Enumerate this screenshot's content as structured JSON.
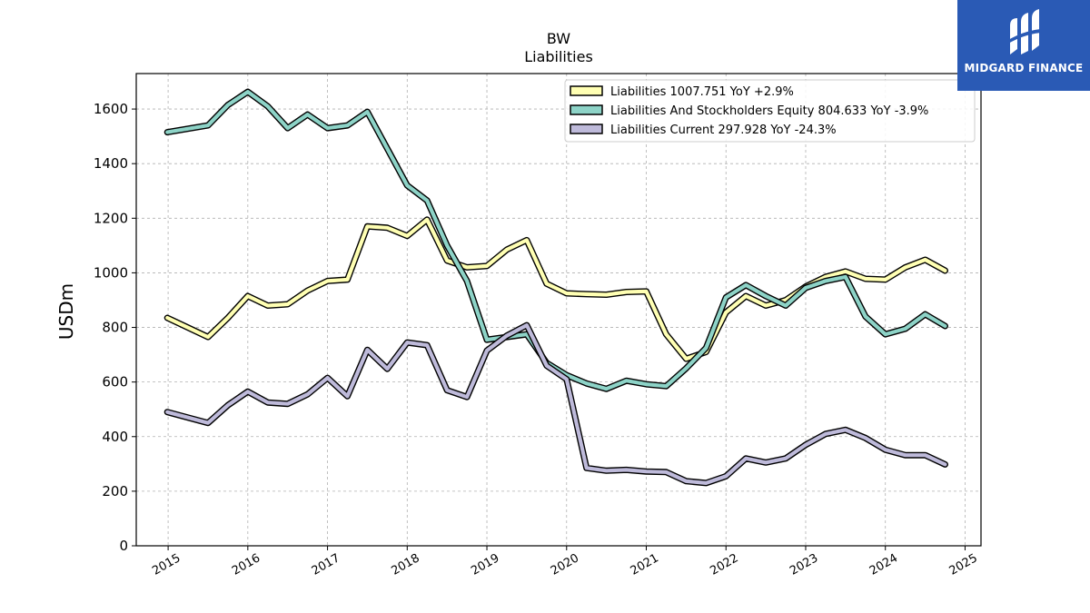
{
  "chart_data": {
    "type": "line",
    "title": "BW",
    "subtitle": "Liabilities",
    "xlabel": "",
    "ylabel": "USDm",
    "xlim": [
      2014.6,
      2025.2
    ],
    "ylim": [
      0,
      1730
    ],
    "xticks": [
      2015,
      2016,
      2017,
      2018,
      2019,
      2020,
      2021,
      2022,
      2023,
      2024,
      2025
    ],
    "xtick_labels": [
      "2015",
      "2016",
      "2017",
      "2018",
      "2019",
      "2020",
      "2021",
      "2022",
      "2023",
      "2024",
      "2025"
    ],
    "yticks": [
      0,
      200,
      400,
      600,
      800,
      1000,
      1200,
      1400,
      1600
    ],
    "ytick_labels": [
      "0",
      "200",
      "400",
      "600",
      "800",
      "1000",
      "1200",
      "1400",
      "1600"
    ],
    "grid": true,
    "legend_position": "top-right",
    "x": [
      2014.99,
      2015.5,
      2015.75,
      2016.0,
      2016.25,
      2016.5,
      2016.75,
      2017.0,
      2017.25,
      2017.5,
      2017.75,
      2018.0,
      2018.25,
      2018.5,
      2018.75,
      2019.0,
      2019.25,
      2019.5,
      2019.75,
      2020.0,
      2020.25,
      2020.5,
      2020.75,
      2021.0,
      2021.25,
      2021.5,
      2021.75,
      2022.0,
      2022.25,
      2022.5,
      2022.75,
      2023.0,
      2023.25,
      2023.5,
      2023.75,
      2024.0,
      2024.25,
      2024.5,
      2024.75
    ],
    "series": [
      {
        "name": "Liabilities",
        "legend": "Liabilities  1007.751 YoY +2.9%",
        "color": "#ffffb3",
        "values": [
          835,
          765,
          835,
          915,
          880,
          885,
          935,
          970,
          975,
          1170,
          1165,
          1135,
          1195,
          1045,
          1020,
          1025,
          1085,
          1120,
          960,
          925,
          922,
          920,
          930,
          932,
          775,
          685,
          710,
          855,
          915,
          880,
          900,
          950,
          985,
          1005,
          978,
          975,
          1020,
          1048,
          1008
        ]
      },
      {
        "name": "Liabilities And Stockholders Equity",
        "legend": "Liabilities And Stockholders Equity  804.633 YoY -3.9%",
        "color": "#8dd3c7",
        "values": [
          1515,
          1540,
          1615,
          1663,
          1610,
          1530,
          1580,
          1530,
          1540,
          1590,
          1455,
          1320,
          1265,
          1100,
          970,
          755,
          765,
          775,
          670,
          625,
          595,
          575,
          605,
          592,
          585,
          650,
          725,
          910,
          955,
          915,
          880,
          945,
          970,
          985,
          840,
          775,
          795,
          848,
          805
        ]
      },
      {
        "name": "Liabilities Current",
        "legend": "Liabilities Current  297.928 YoY -24.3%",
        "color": "#bebada",
        "values": [
          490,
          450,
          515,
          565,
          525,
          520,
          555,
          615,
          548,
          718,
          648,
          745,
          735,
          570,
          545,
          715,
          770,
          808,
          660,
          610,
          285,
          275,
          278,
          272,
          270,
          237,
          230,
          255,
          320,
          305,
          320,
          370,
          410,
          425,
          395,
          352,
          332,
          332,
          298
        ]
      }
    ]
  },
  "branding": {
    "logo_text": "MIDGARD FINANCE",
    "logo_bg": "#2a5ab5"
  }
}
